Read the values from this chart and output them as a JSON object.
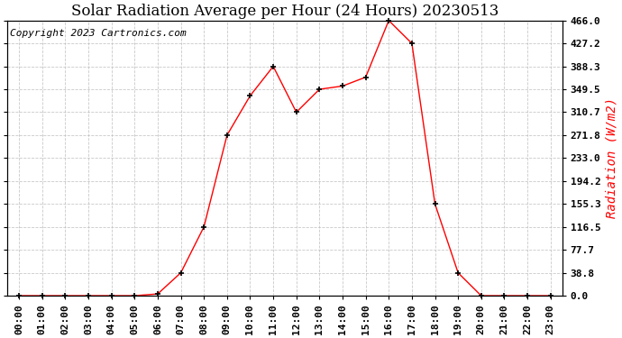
{
  "title": "Solar Radiation Average per Hour (24 Hours) 20230513",
  "copyright_text": "Copyright 2023 Cartronics.com",
  "ylabel": "Radiation (W/m2)",
  "hours": [
    "00:00",
    "01:00",
    "02:00",
    "03:00",
    "04:00",
    "05:00",
    "06:00",
    "07:00",
    "08:00",
    "09:00",
    "10:00",
    "11:00",
    "12:00",
    "13:00",
    "14:00",
    "15:00",
    "16:00",
    "17:00",
    "18:00",
    "19:00",
    "20:00",
    "21:00",
    "22:00",
    "23:00"
  ],
  "values": [
    0.0,
    0.0,
    0.0,
    0.0,
    0.0,
    0.0,
    3.0,
    38.8,
    116.5,
    271.8,
    338.5,
    388.3,
    310.7,
    349.5,
    355.0,
    370.0,
    466.0,
    427.2,
    155.3,
    38.8,
    0.0,
    0.0,
    0.0,
    0.0
  ],
  "yticks": [
    0.0,
    38.8,
    77.7,
    116.5,
    155.3,
    194.2,
    233.0,
    271.8,
    310.7,
    349.5,
    388.3,
    427.2,
    466.0
  ],
  "ymax": 466.0,
  "line_color": "red",
  "marker": "+",
  "background_color": "white",
  "grid_color": "#bbbbbb",
  "title_fontsize": 12,
  "copyright_fontsize": 8,
  "ylabel_fontsize": 10,
  "tick_fontsize": 8,
  "ylabel_color": "red"
}
